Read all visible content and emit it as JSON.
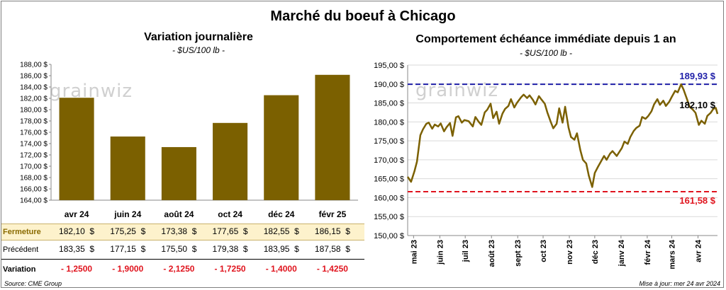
{
  "title": "Marché du boeuf à Chicago",
  "watermark": "grainwiz",
  "left_panel": {
    "title": "Variation  journalière",
    "subtitle": "- $US/100 lb -"
  },
  "right_panel": {
    "title": "Comportement  échéance  immédiate  depuis  1 an",
    "subtitle": "- $US/100 lb -"
  },
  "source": "Source: CME Group",
  "updated": "Mise à jour: mer 24 avr 2024",
  "colors": {
    "bar": "#7b6000",
    "line": "#7b6000",
    "high": "#1f1fa8",
    "low": "#e0141e",
    "highlight_row": "#fdf2cc",
    "negative": "#e0141e"
  },
  "table": {
    "rows": [
      {
        "label": "Fermeture",
        "values": [
          "182,10  $",
          "175,25  $",
          "173,38  $",
          "177,65  $",
          "182,55  $",
          "186,15  $"
        ]
      },
      {
        "label": "Précédent",
        "values": [
          "183,35  $",
          "177,15  $",
          "175,50  $",
          "179,38  $",
          "183,95  $",
          "187,58  $"
        ]
      },
      {
        "label": "Variation",
        "values": [
          "- 1,2500",
          "- 1,9000",
          "- 2,1250",
          "- 1,7250",
          "- 1,4000",
          "- 1,4250"
        ]
      }
    ]
  },
  "chart_data": [
    {
      "type": "bar",
      "categories": [
        "avr 24",
        "juin 24",
        "août 24",
        "oct 24",
        "déc 24",
        "févr 25"
      ],
      "values": [
        182.1,
        175.25,
        173.38,
        177.65,
        182.55,
        186.15
      ],
      "ylim": [
        164,
        188
      ],
      "yticks": [
        "164,00 $",
        "166,00 $",
        "168,00 $",
        "170,00 $",
        "172,00 $",
        "174,00 $",
        "176,00 $",
        "178,00 $",
        "180,00 $",
        "182,00 $",
        "184,00 $",
        "186,00 $",
        "188,00 $"
      ],
      "ytick_values": [
        164,
        166,
        168,
        170,
        172,
        174,
        176,
        178,
        180,
        182,
        184,
        186,
        188
      ],
      "grid": false
    },
    {
      "type": "line",
      "ylim": [
        150,
        195
      ],
      "yticks": [
        "150,00 $",
        "155,00 $",
        "160,00 $",
        "165,00 $",
        "170,00 $",
        "175,00 $",
        "180,00 $",
        "185,00 $",
        "190,00 $",
        "195,00 $"
      ],
      "ytick_values": [
        150,
        155,
        160,
        165,
        170,
        175,
        180,
        185,
        190,
        195
      ],
      "xticks": [
        "mai 23",
        "juin 23",
        "juil 23",
        "août 23",
        "sept 23",
        "oct 23",
        "nov 23",
        "déc 23",
        "janv 24",
        "févr 24",
        "mars 24",
        "avr 24"
      ],
      "xtick_dates": [
        "2023-05-01",
        "2023-06-01",
        "2023-07-01",
        "2023-08-01",
        "2023-09-01",
        "2023-10-01",
        "2023-11-01",
        "2023-12-01",
        "2024-01-01",
        "2024-02-01",
        "2024-03-01",
        "2024-04-01"
      ],
      "xlim": [
        "2023-04-24",
        "2024-04-24"
      ],
      "high": {
        "value": 189.93,
        "label": "189,93 $"
      },
      "low": {
        "value": 161.58,
        "label": "161,58 $"
      },
      "last": {
        "value": 182.1,
        "label": "182,10 $"
      },
      "grid": true,
      "series": [
        {
          "x": [
            "2023-04-24",
            "2023-04-28",
            "2023-05-02",
            "2023-05-05",
            "2023-05-09",
            "2023-05-12",
            "2023-05-16",
            "2023-05-19",
            "2023-05-23",
            "2023-05-26",
            "2023-05-30",
            "2023-06-02",
            "2023-06-06",
            "2023-06-09",
            "2023-06-13",
            "2023-06-16",
            "2023-06-20",
            "2023-06-23",
            "2023-06-27",
            "2023-06-30",
            "2023-07-05",
            "2023-07-10",
            "2023-07-13",
            "2023-07-17",
            "2023-07-20",
            "2023-07-24",
            "2023-07-27",
            "2023-07-31",
            "2023-08-03",
            "2023-08-07",
            "2023-08-10",
            "2023-08-14",
            "2023-08-17",
            "2023-08-21",
            "2023-08-24",
            "2023-08-28",
            "2023-08-31",
            "2023-09-05",
            "2023-09-08",
            "2023-09-12",
            "2023-09-15",
            "2023-09-19",
            "2023-09-22",
            "2023-09-26",
            "2023-09-29",
            "2023-10-03",
            "2023-10-06",
            "2023-10-10",
            "2023-10-13",
            "2023-10-17",
            "2023-10-20",
            "2023-10-24",
            "2023-10-27",
            "2023-10-31",
            "2023-11-03",
            "2023-11-07",
            "2023-11-10",
            "2023-11-14",
            "2023-11-17",
            "2023-11-21",
            "2023-11-24",
            "2023-11-28",
            "2023-12-01",
            "2023-12-05",
            "2023-12-08",
            "2023-12-12",
            "2023-12-15",
            "2023-12-19",
            "2023-12-22",
            "2023-12-27",
            "2024-01-02",
            "2024-01-05",
            "2024-01-09",
            "2024-01-12",
            "2024-01-16",
            "2024-01-19",
            "2024-01-23",
            "2024-01-26",
            "2024-01-30",
            "2024-02-02",
            "2024-02-06",
            "2024-02-09",
            "2024-02-13",
            "2024-02-16",
            "2024-02-20",
            "2024-02-23",
            "2024-02-27",
            "2024-03-01",
            "2024-03-05",
            "2024-03-08",
            "2024-03-12",
            "2024-03-15",
            "2024-03-19",
            "2024-03-22",
            "2024-03-26",
            "2024-03-29",
            "2024-04-02",
            "2024-04-05",
            "2024-04-09",
            "2024-04-12",
            "2024-04-16",
            "2024-04-19",
            "2024-04-22",
            "2024-04-24"
          ],
          "y": [
            165.5,
            164.2,
            167.0,
            169.5,
            176.5,
            178.0,
            179.5,
            179.8,
            178.2,
            179.3,
            178.8,
            179.6,
            177.5,
            178.6,
            179.7,
            176.3,
            181.2,
            181.5,
            179.8,
            180.5,
            180.2,
            178.8,
            181.3,
            180.0,
            179.2,
            182.5,
            183.2,
            184.8,
            181.0,
            182.7,
            179.5,
            182.2,
            183.4,
            184.2,
            186.0,
            183.8,
            185.0,
            186.5,
            187.2,
            186.3,
            187.0,
            185.8,
            184.6,
            186.8,
            185.9,
            184.8,
            182.5,
            180.0,
            178.3,
            179.5,
            183.6,
            179.8,
            184.0,
            178.5,
            176.0,
            175.3,
            177.0,
            172.5,
            170.0,
            169.0,
            165.8,
            162.8,
            166.5,
            168.2,
            169.4,
            171.0,
            170.0,
            171.6,
            172.3,
            171.0,
            173.1,
            174.8,
            174.2,
            176.0,
            177.6,
            178.4,
            179.0,
            181.3,
            180.8,
            181.5,
            182.8,
            184.6,
            186.0,
            184.5,
            185.6,
            184.2,
            185.3,
            186.6,
            188.2,
            187.8,
            189.93,
            188.5,
            186.0,
            184.0,
            183.2,
            182.4,
            179.2,
            180.3,
            179.5,
            181.6,
            182.4,
            183.4,
            183.7,
            182.1
          ]
        }
      ]
    }
  ]
}
